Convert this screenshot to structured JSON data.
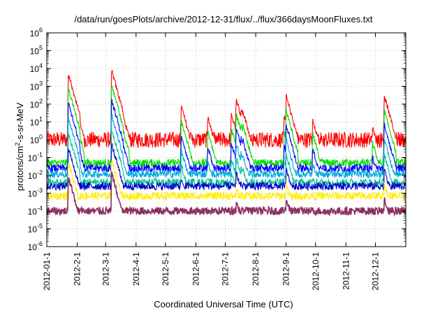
{
  "chart_data": {
    "type": "line",
    "title": "/data/run/goesPlots/archive/2012-12-31/flux/../flux/366daysMoonFluxes.txt",
    "xlabel": "Coordinated Universal Time (UTC)",
    "ylabel_main": "protons/cm",
    "ylabel_sup": "2",
    "ylabel_rest": "-s-sr-MeV",
    "y_scale": "log",
    "ylim": [
      1e-06,
      1000000.0
    ],
    "y_ticks": [
      {
        "base": "10",
        "exp": "-6"
      },
      {
        "base": "10",
        "exp": "-5"
      },
      {
        "base": "10",
        "exp": "-4"
      },
      {
        "base": "10",
        "exp": "-3"
      },
      {
        "base": "10",
        "exp": "-2"
      },
      {
        "base": "10",
        "exp": "-1"
      },
      {
        "base": "10",
        "exp": "0"
      },
      {
        "base": "10",
        "exp": "1"
      },
      {
        "base": "10",
        "exp": "2"
      },
      {
        "base": "10",
        "exp": "3"
      },
      {
        "base": "10",
        "exp": "4"
      },
      {
        "base": "10",
        "exp": "5"
      },
      {
        "base": "10",
        "exp": "6"
      }
    ],
    "x_tick_labels": [
      "2012-01-1",
      "2012-2-1",
      "2012-3-1",
      "2012-4-1",
      "2012-5-1",
      "2012-6-1",
      "2012-7-1",
      "2012-8-1",
      "2012-9-1",
      "2012-10-1",
      "2012-11-1",
      "2012-12-1"
    ],
    "x_tick_dates": [
      "2012-01-01",
      "2012-02-01",
      "2012-03-01",
      "2012-04-01",
      "2012-05-01",
      "2012-06-01",
      "2012-07-01",
      "2012-08-01",
      "2012-09-01",
      "2012-10-01",
      "2012-11-01",
      "2012-12-01"
    ],
    "xlim": [
      "2012-01-01",
      "2013-01-01"
    ],
    "grid": true,
    "legend": "none",
    "events": [
      {
        "date": "2012-01-23",
        "peak": 5000
      },
      {
        "date": "2012-01-27",
        "peak": 300
      },
      {
        "date": "2012-03-07",
        "peak": 8000
      },
      {
        "date": "2012-03-13",
        "peak": 300
      },
      {
        "date": "2012-05-17",
        "peak": 80
      },
      {
        "date": "2012-06-13",
        "peak": 20
      },
      {
        "date": "2012-07-07",
        "peak": 30
      },
      {
        "date": "2012-07-12",
        "peak": 200
      },
      {
        "date": "2012-07-17",
        "peak": 60
      },
      {
        "date": "2012-07-19",
        "peak": 40
      },
      {
        "date": "2012-08-30",
        "peak": 20
      },
      {
        "date": "2012-09-01",
        "peak": 300
      },
      {
        "date": "2012-09-28",
        "peak": 15
      },
      {
        "date": "2012-11-28",
        "peak": 5
      },
      {
        "date": "2012-12-10",
        "peak": 300
      }
    ],
    "series": [
      {
        "color": "#ff0000",
        "baseline": 1.0
      },
      {
        "color": "#00dd00",
        "baseline": 0.05
      },
      {
        "color": "#0000ff",
        "baseline": 0.025
      },
      {
        "color": "#00aadd",
        "baseline": 0.012
      },
      {
        "color": "#00c090",
        "baseline": 0.004
      },
      {
        "color": "#0000cc",
        "baseline": 0.0025
      },
      {
        "color": "#ffee00",
        "baseline": 0.0007
      },
      {
        "color": "#8b3060",
        "baseline": 0.0001
      }
    ]
  }
}
